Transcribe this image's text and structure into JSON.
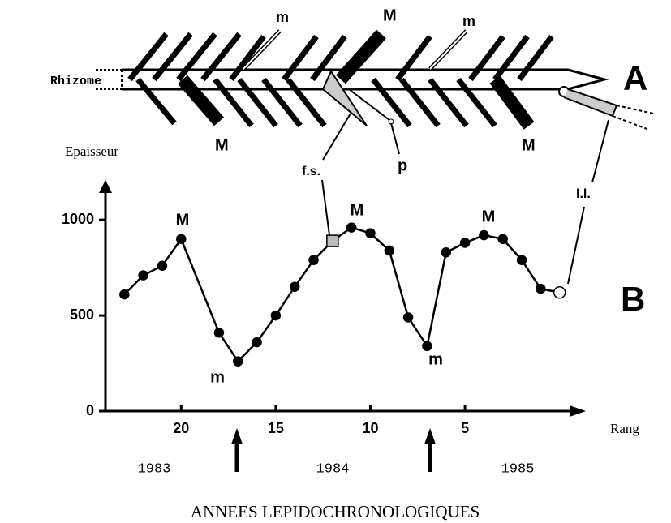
{
  "chart_data": {
    "type": "line",
    "y_label": "Epaisseur",
    "x_label": "Rang",
    "panel": "B",
    "x": [
      23,
      22,
      21,
      20,
      19,
      18,
      17,
      16,
      15,
      14,
      13,
      12,
      11,
      10,
      9,
      8,
      7,
      6,
      5,
      4,
      3,
      2,
      1,
      0
    ],
    "series": [
      {
        "color": "#000000",
        "values": [
          610,
          710,
          760,
          900,
          null,
          410,
          260,
          360,
          500,
          650,
          790,
          890,
          960,
          930,
          840,
          490,
          340,
          830,
          880,
          920,
          900,
          790,
          640,
          620
        ],
        "markers": [
          "circle",
          "circle",
          "circle",
          "circle",
          null,
          "circle",
          "circle",
          "circle",
          "circle",
          "circle",
          "circle",
          "square",
          "circle",
          "circle",
          "circle",
          "circle",
          "circle",
          "circle",
          "circle",
          "circle",
          "circle",
          "circle",
          "circle",
          "open-circle"
        ]
      }
    ],
    "xlim": [
      24,
      -1
    ],
    "ylim": [
      0,
      1200
    ],
    "xticks": [
      20,
      15,
      10,
      5
    ],
    "yticks": [
      0,
      500,
      1000
    ],
    "annotations": [
      "M",
      "m",
      "M",
      "m",
      "M"
    ],
    "years": [
      "1983",
      "1984",
      "1985"
    ],
    "footer": "ANNEES LEPIDOCHRONOLOGIQUES"
  },
  "diagram": {
    "panel": "A",
    "rhizome": "Rhizome",
    "labels": [
      "m",
      "M",
      "m",
      "M",
      "M",
      "f.s.",
      "p",
      "l.l."
    ]
  }
}
